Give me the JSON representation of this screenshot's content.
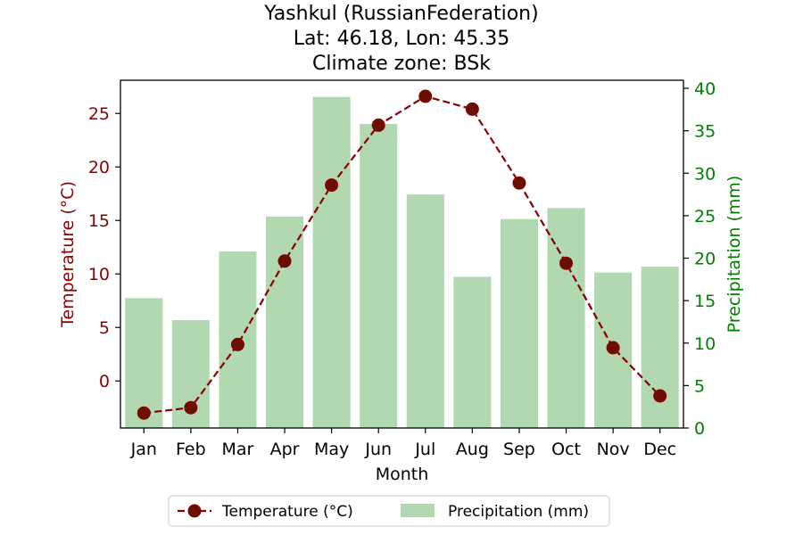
{
  "chart_data": {
    "type": "bar",
    "title_lines": [
      "Yashkul (RussianFederation)",
      "Lat: 46.18, Lon: 45.35",
      "Climate zone: BSk"
    ],
    "xlabel": "Month",
    "categories": [
      "Jan",
      "Feb",
      "Mar",
      "Apr",
      "May",
      "Jun",
      "Jul",
      "Aug",
      "Sep",
      "Oct",
      "Nov",
      "Dec"
    ],
    "series": [
      {
        "name": "Temperature (°C)",
        "type": "line",
        "axis": "left",
        "color": "#8b0000",
        "values": [
          -3.0,
          -2.5,
          3.4,
          11.2,
          18.3,
          23.9,
          26.6,
          25.4,
          18.5,
          11.0,
          3.1,
          -1.4
        ]
      },
      {
        "name": "Precipitation (mm)",
        "type": "bar",
        "axis": "right",
        "color": "#b2d8b2",
        "values": [
          15.3,
          12.7,
          20.8,
          24.9,
          39.0,
          35.8,
          27.5,
          17.8,
          24.6,
          25.9,
          18.3,
          19.0
        ]
      }
    ],
    "y_left": {
      "label": "Temperature (°C)",
      "ylim": [
        -4.4,
        28.1
      ],
      "ticks": [
        0,
        5,
        10,
        15,
        20,
        25
      ],
      "color": "#8b0000"
    },
    "y_right": {
      "label": "Precipitation (mm)",
      "ylim": [
        0,
        40.95
      ],
      "ticks": [
        0,
        5,
        10,
        15,
        20,
        25,
        30,
        35,
        40
      ],
      "color": "#008000"
    },
    "grid": false,
    "legend": {
      "placement": "bottom-center",
      "columns": 2
    }
  }
}
